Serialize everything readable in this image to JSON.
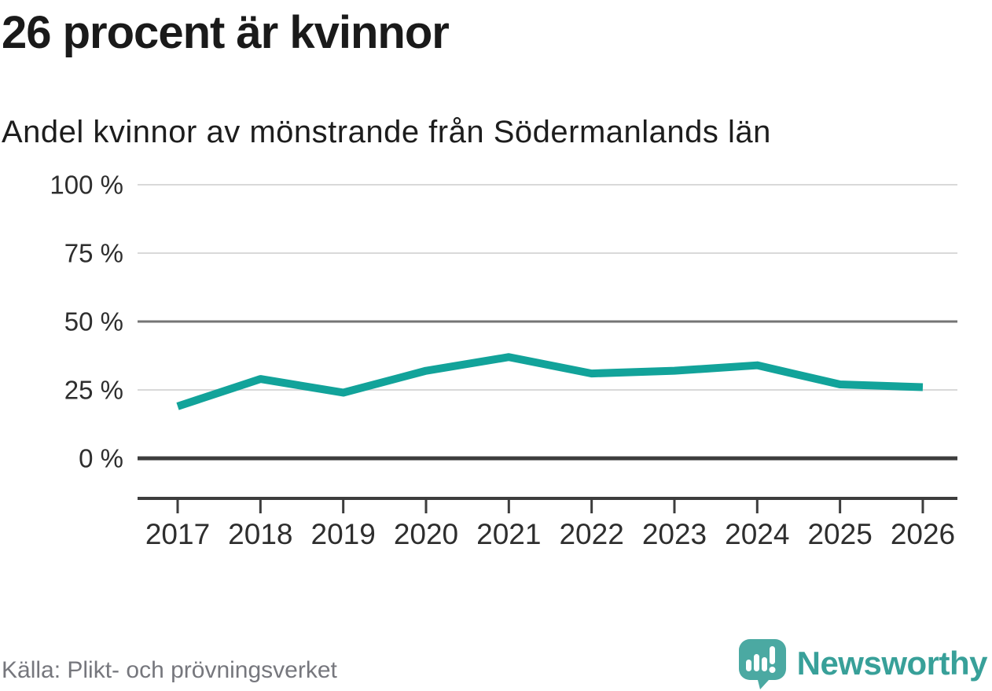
{
  "header": {
    "title": "26 procent är kvinnor",
    "subtitle": "Andel kvinnor av mönstrande från Södermanlands län"
  },
  "footer": {
    "source": "Källa: Plikt- och prövningsverket",
    "brand": "Newsworthy"
  },
  "colors": {
    "line": "#12a39a",
    "grid_light": "#d9d9d9",
    "grid_mid": "#757575",
    "axis_dark": "#3d3d3d",
    "tick_text": "#2e2e2e",
    "source_text": "#76777d",
    "logo_teal": "#4ba9a2",
    "brand_teal": "#38a099"
  },
  "chart_data": {
    "type": "line",
    "title": "26 procent är kvinnor",
    "subtitle": "Andel kvinnor av mönstrande från Södermanlands län",
    "x": [
      2017,
      2018,
      2019,
      2020,
      2021,
      2022,
      2023,
      2024,
      2025,
      2026
    ],
    "series": [
      {
        "name": "Andel kvinnor av mönstrande",
        "values": [
          19,
          29,
          24,
          32,
          37,
          31,
          32,
          34,
          27,
          26
        ]
      }
    ],
    "unit": "%",
    "ylim": [
      0,
      100
    ],
    "yticks": [
      0,
      25,
      50,
      75,
      100
    ],
    "ytick_labels": [
      "0 %",
      "25 %",
      "50 %",
      "75 %",
      "100 %"
    ],
    "grid": true,
    "legend": "none",
    "source": "Källa: Plikt- och prövningsverket"
  }
}
